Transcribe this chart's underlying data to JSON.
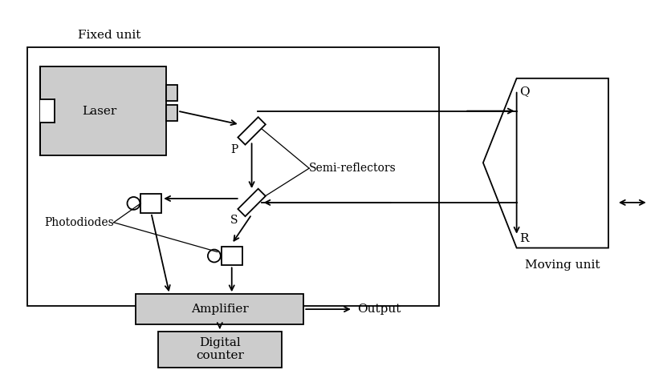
{
  "bg_color": "#ffffff",
  "line_color": "#000000",
  "box_fill": "#cccccc",
  "fixed_unit_label": "Fixed unit",
  "moving_unit_label": "Moving unit",
  "labels": {
    "laser": "Laser",
    "amplifier": "Amplifier",
    "digital_counter": "Digital\ncounter",
    "output": "Output",
    "photodiodes": "Photodiodes",
    "semi_reflectors": "Semi-reflectors",
    "P": "P",
    "S": "S",
    "Q": "Q",
    "R": "R"
  }
}
